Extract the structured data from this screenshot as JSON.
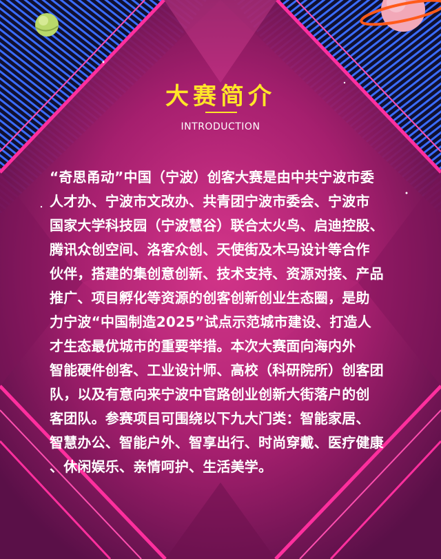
{
  "header": {
    "title": "大赛简介",
    "subtitle": "INTRODUCTION"
  },
  "intro": {
    "text": "“奇思甬动”中国（宁波）创客大赛是由中共宁波市委\n人才办、宁波市文改办、共青团宁波市委会、宁波市\n国家大学科技园（宁波慧谷）联合太火鸟、启迪控股、\n腾讯众创空间、洛客众创、天使街及木马设计等合作\n伙伴，搭建的集创意创新、技术支持、资源对接、产品\n推广、项目孵化等资源的创客创新创业生态圈，是助\n力宁波“中国制造2025”试点示范城市建设、打造人\n才生态最优城市的重要举措。本次大赛面向海内外\n智能硬件创客、工业设计师、高校（科研院所）创客团\n队，以及有意向来宁波中官路创业创新大街落户的创\n客团队。参赛项目可围绕以下九大门类：智能家居、\n智慧办公、智能户外、智享出行、时尚穿戴、医疗健康\n、休闲娱乐、亲情呵护、生活美学。"
  },
  "colors": {
    "title": "#ffe628",
    "background_magenta": "#c0267a",
    "stripe_blue": "#3a6cff",
    "stripe_pink": "#ff2f9e",
    "text": "#ffffff"
  },
  "decorations": [
    "green-planet-icon",
    "ringed-planet-icon"
  ]
}
